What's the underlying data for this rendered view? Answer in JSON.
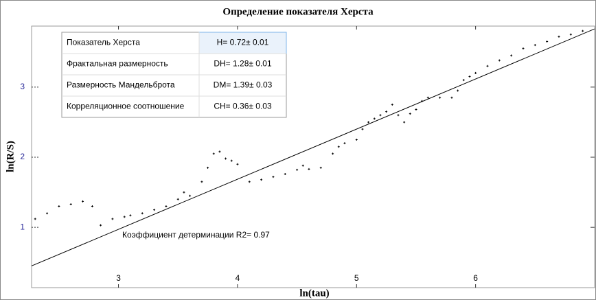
{
  "chart_data": {
    "type": "scatter",
    "title": "Определение показателя Херста",
    "x_label": "ln(tau)",
    "y_label": "ln(R/S)",
    "xlim": [
      2.27,
      7.0
    ],
    "ylim": [
      0.14,
      3.87
    ],
    "xticks": [
      3,
      4,
      5,
      6
    ],
    "yticks": [
      1,
      2,
      3
    ],
    "color": "#000000",
    "x": [
      2.3,
      2.4,
      2.5,
      2.6,
      2.7,
      2.78,
      2.85,
      2.95,
      3.05,
      3.1,
      3.2,
      3.3,
      3.4,
      3.5,
      3.55,
      3.6,
      3.7,
      3.75,
      3.8,
      3.85,
      3.9,
      3.95,
      4.0,
      4.1,
      4.2,
      4.3,
      4.4,
      4.5,
      4.55,
      4.6,
      4.7,
      4.8,
      4.85,
      4.9,
      5.0,
      5.05,
      5.1,
      5.15,
      5.2,
      5.25,
      5.3,
      5.35,
      5.4,
      5.45,
      5.5,
      5.55,
      5.6,
      5.7,
      5.8,
      5.85,
      5.9,
      5.95,
      6.0,
      6.1,
      6.2,
      6.3,
      6.4,
      6.5,
      6.6,
      6.7,
      6.8,
      6.9
    ],
    "values": [
      1.12,
      1.2,
      1.3,
      1.33,
      1.37,
      1.3,
      1.03,
      1.12,
      1.15,
      1.17,
      1.2,
      1.25,
      1.3,
      1.4,
      1.5,
      1.45,
      1.65,
      1.85,
      2.05,
      2.08,
      1.98,
      1.95,
      1.9,
      1.65,
      1.68,
      1.72,
      1.76,
      1.82,
      1.88,
      1.83,
      1.85,
      2.05,
      2.15,
      2.2,
      2.25,
      2.4,
      2.5,
      2.55,
      2.6,
      2.65,
      2.75,
      2.6,
      2.5,
      2.62,
      2.68,
      2.8,
      2.85,
      2.85,
      2.85,
      2.95,
      3.1,
      3.15,
      3.2,
      3.3,
      3.38,
      3.45,
      3.55,
      3.6,
      3.65,
      3.72,
      3.75,
      3.8
    ],
    "fit": {
      "x": [
        2.27,
        7.0
      ],
      "values": [
        0.45,
        3.83
      ],
      "color": "#000000"
    },
    "annotation": "Коэффициент детерминации R2= 0.97",
    "table": [
      [
        "Показатель Херста",
        "H= 0.72± 0.01"
      ],
      [
        "Фрактальная размерность",
        "DH= 1.28± 0.01"
      ],
      [
        "Размерность Мандельброта",
        "DM= 1.39± 0.03"
      ],
      [
        "Корреляционное соотношение",
        "CH= 0.36± 0.03"
      ]
    ]
  }
}
